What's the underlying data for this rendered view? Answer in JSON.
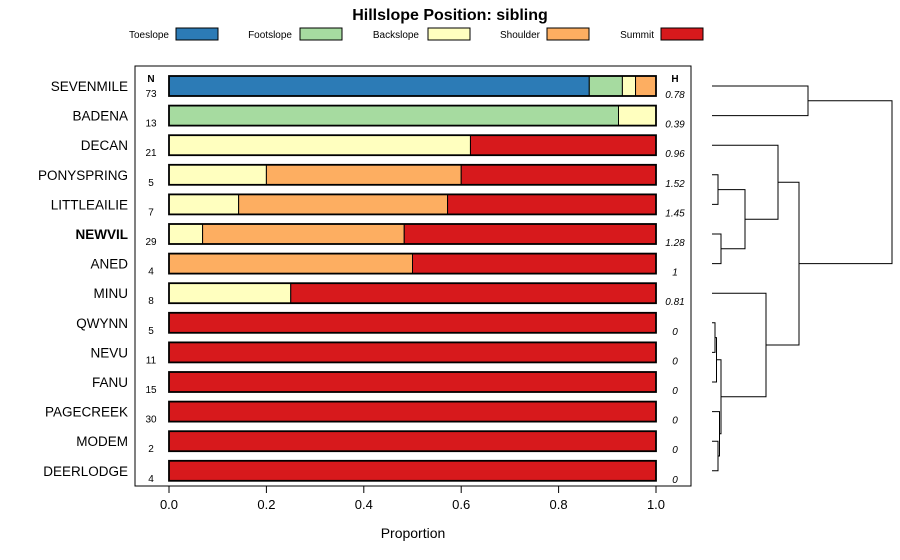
{
  "chart_data": {
    "type": "bar",
    "orientation": "horizontal",
    "stacked": true,
    "title": "Hillslope Position: sibling",
    "xlabel": "Proportion",
    "ylabel": "",
    "xlim": [
      0,
      1
    ],
    "x_ticks": [
      "0.0",
      "0.2",
      "0.4",
      "0.6",
      "0.8",
      "1.0"
    ],
    "n_header": "N",
    "h_header": "H",
    "highlight": "NEWVIL",
    "legend": {
      "position": "top",
      "entries": [
        {
          "label": "Toeslope",
          "color": "#2c7bb6"
        },
        {
          "label": "Footslope",
          "color": "#a6dba0"
        },
        {
          "label": "Backslope",
          "color": "#ffffbf"
        },
        {
          "label": "Shoulder",
          "color": "#fdae61"
        },
        {
          "label": "Summit",
          "color": "#d7191c"
        }
      ]
    },
    "categories": [
      "SEVENMILE",
      "BADENA",
      "DECAN",
      "PONYSPRING",
      "LITTLEAILIE",
      "NEWVIL",
      "ANED",
      "MINU",
      "QWYNN",
      "NEVU",
      "FANU",
      "PAGECREEK",
      "MODEM",
      "DEERLODGE"
    ],
    "n": [
      "73",
      "13",
      "21",
      "5",
      "7",
      "29",
      "4",
      "8",
      "5",
      "11",
      "15",
      "30",
      "2",
      "4"
    ],
    "h": [
      "0.78",
      "0.39",
      "0.96",
      "1.52",
      "1.45",
      "1.28",
      "1",
      "0.81",
      "0",
      "0",
      "0",
      "0",
      "0",
      "0"
    ],
    "series": [
      {
        "name": "Toeslope",
        "values": [
          0.863,
          0,
          0,
          0,
          0,
          0,
          0,
          0,
          0,
          0,
          0,
          0,
          0,
          0
        ]
      },
      {
        "name": "Footslope",
        "values": [
          0.068,
          0.923,
          0,
          0,
          0,
          0,
          0,
          0,
          0,
          0,
          0,
          0,
          0,
          0
        ]
      },
      {
        "name": "Backslope",
        "values": [
          0.027,
          0.077,
          0.619,
          0.2,
          0.143,
          0.069,
          0,
          0.25,
          0,
          0,
          0,
          0,
          0,
          0
        ]
      },
      {
        "name": "Shoulder",
        "values": [
          0.042,
          0,
          0,
          0.4,
          0.429,
          0.414,
          0.5,
          0,
          0,
          0,
          0,
          0,
          0,
          0
        ]
      },
      {
        "name": "Summit",
        "values": [
          0,
          0,
          0.381,
          0.4,
          0.428,
          0.517,
          0.5,
          0.75,
          1,
          1,
          1,
          1,
          1,
          1
        ]
      }
    ],
    "dendrogram": {
      "leaves": [
        "SEVENMILE",
        "BADENA",
        "DECAN",
        "PONYSPRING",
        "LITTLEAILIE",
        "NEWVIL",
        "ANED",
        "MINU",
        "QWYNN",
        "NEVU",
        "FANU",
        "PAGECREEK",
        "MODEM",
        "DEERLODGE"
      ],
      "merges": [
        {
          "a": "SEVENMILE",
          "b": "BADENA",
          "height": 0.32
        },
        {
          "a": "PONYSPRING",
          "b": "LITTLEAILIE",
          "height": 0.02
        },
        {
          "a": "NEWVIL",
          "b": "ANED",
          "height": 0.03
        },
        {
          "a": 1,
          "b": 2,
          "height": 0.11
        },
        {
          "a": "DECAN",
          "b": 3,
          "height": 0.22
        },
        {
          "a": "QWYNN",
          "b": "NEVU",
          "height": 0.01
        },
        {
          "a": 5,
          "b": "FANU",
          "height": 0.015
        },
        {
          "a": "MODEM",
          "b": "DEERLODGE",
          "height": 0.02
        },
        {
          "a": "PAGECREEK",
          "b": 7,
          "height": 0.025
        },
        {
          "a": 6,
          "b": 8,
          "height": 0.03
        },
        {
          "a": "MINU",
          "b": 9,
          "height": 0.18
        },
        {
          "a": 4,
          "b": 10,
          "height": 0.29
        },
        {
          "a": 0,
          "b": 11,
          "height": 0.6
        }
      ]
    }
  }
}
